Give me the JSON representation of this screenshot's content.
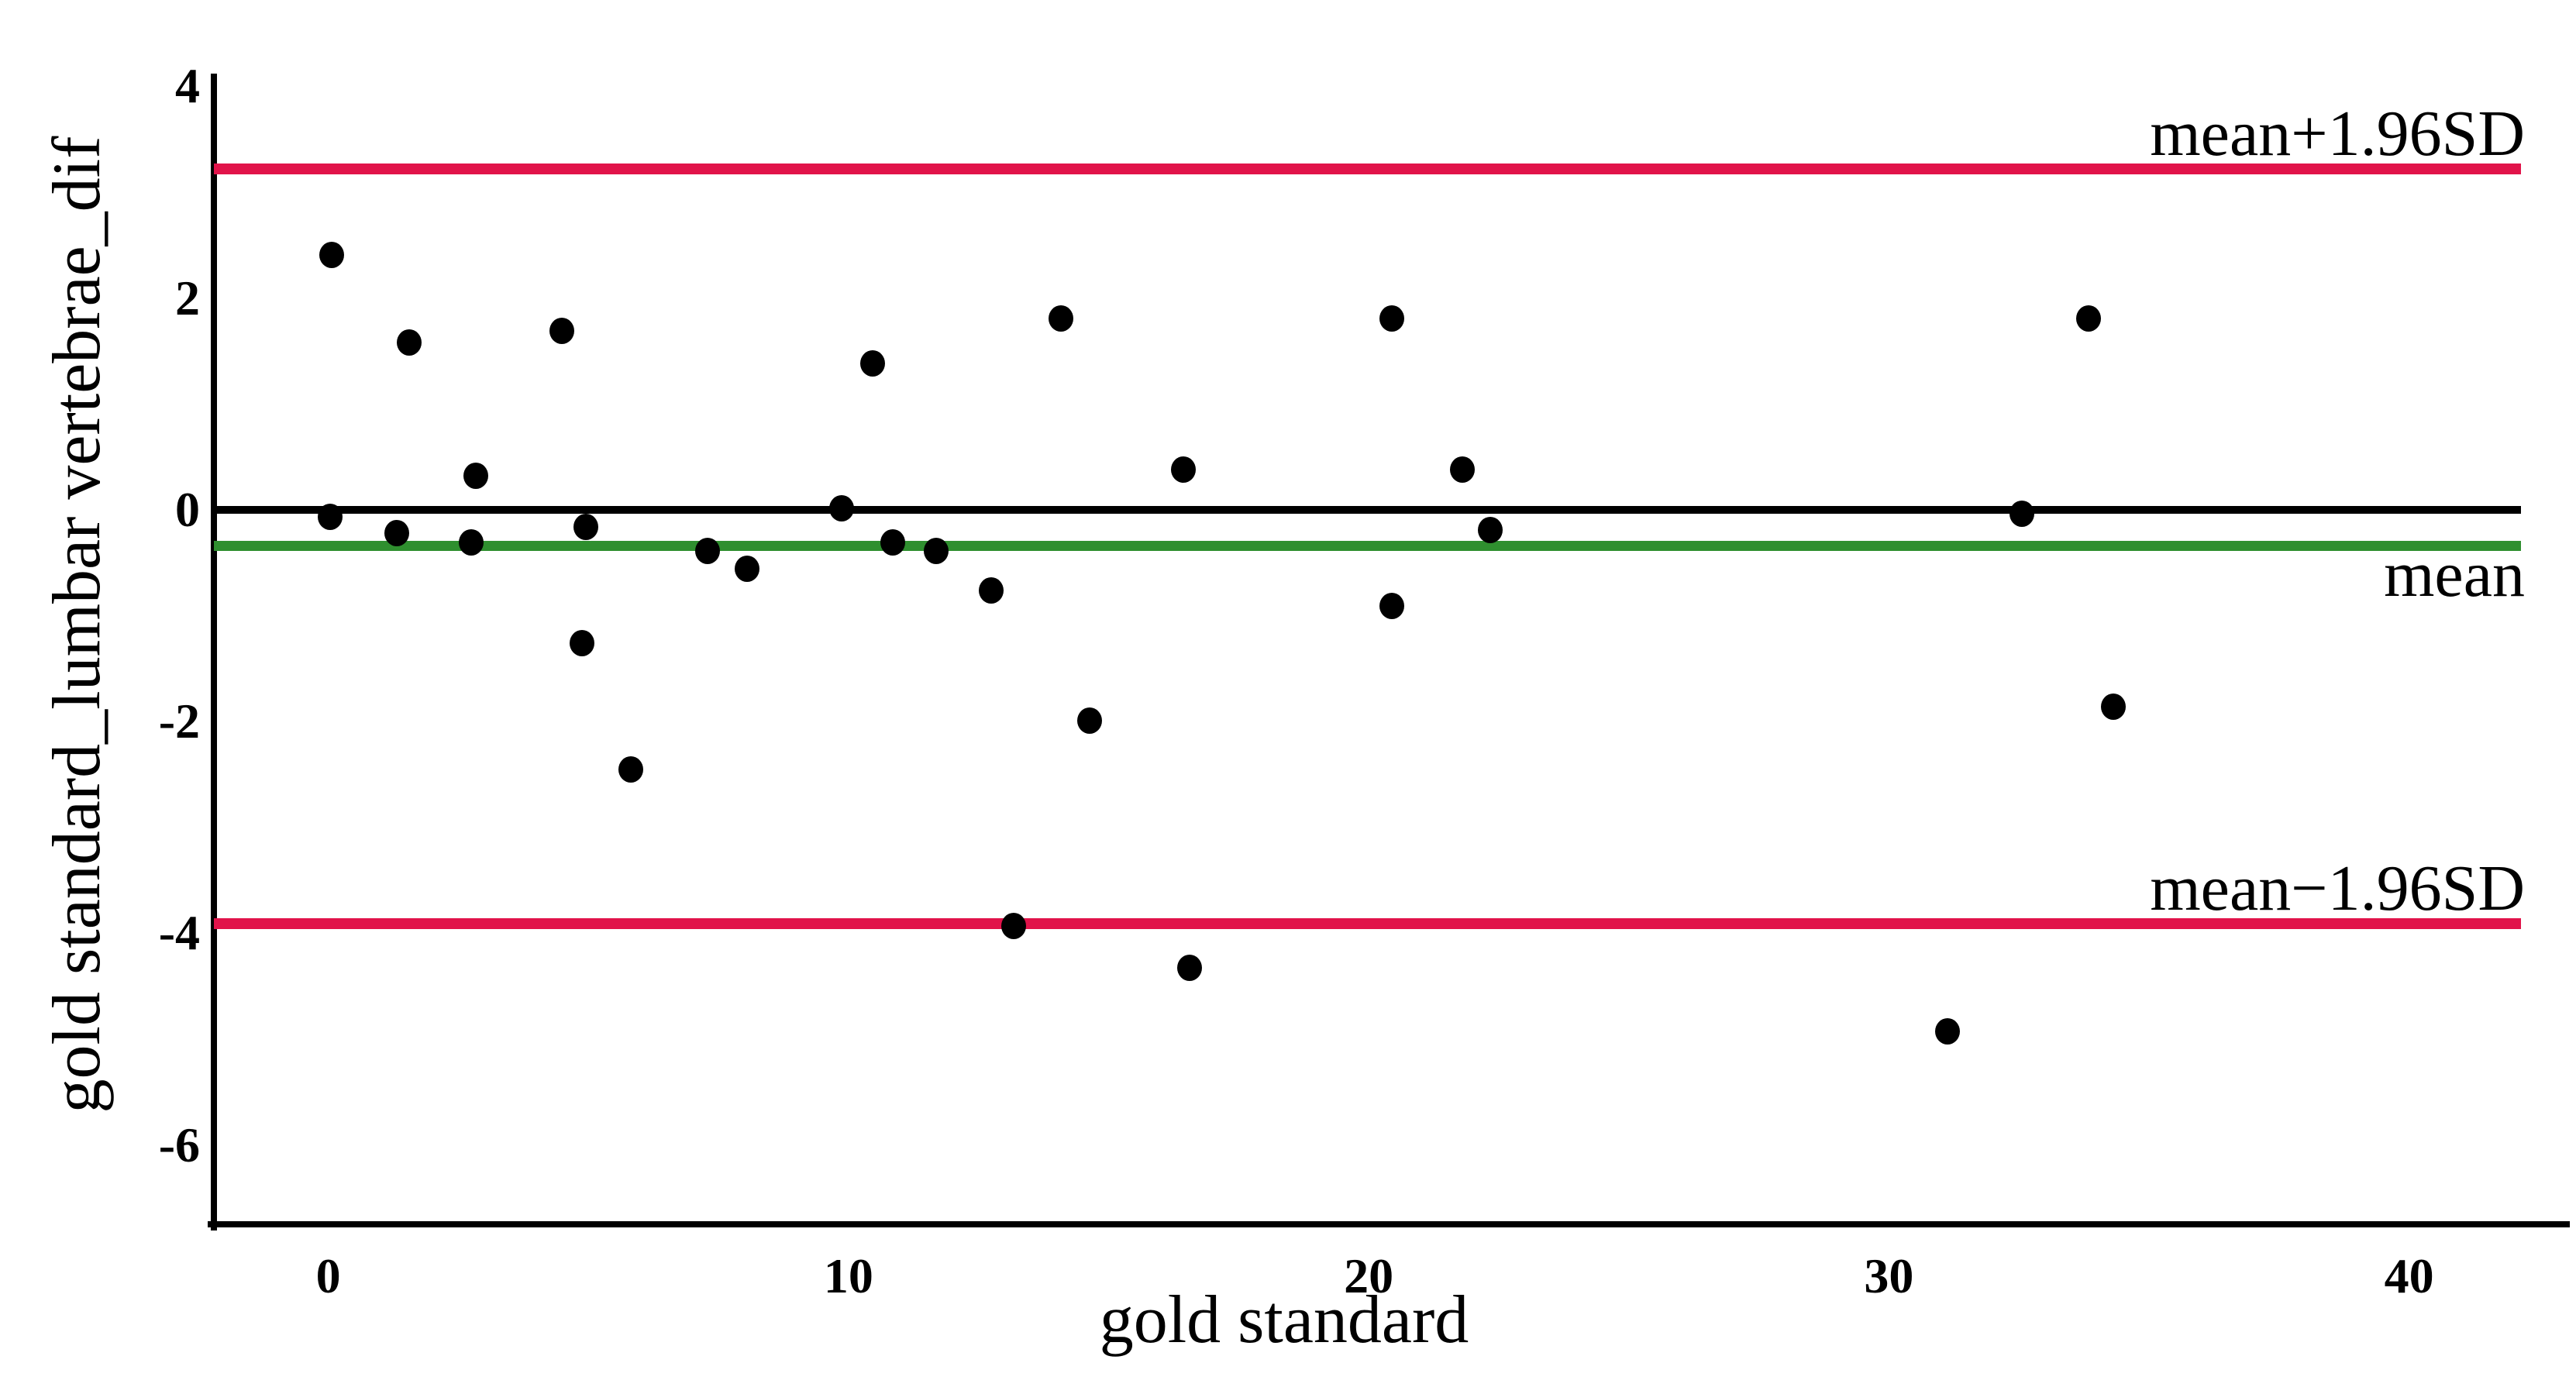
{
  "chart_data": {
    "type": "scatter",
    "title": "",
    "xlabel": "gold standard",
    "ylabel": "gold standard_lumbar vertebrae_dif",
    "xlim": [
      -2.2,
      42.15
    ],
    "ylim": [
      -6.75,
      4.12
    ],
    "grid": false,
    "legend_position": "none",
    "background": "#ffffff",
    "axis_color": "#000000",
    "point_color": "#000000",
    "x_ticks": [
      {
        "value": 0,
        "label": "0"
      },
      {
        "value": 10,
        "label": "10"
      },
      {
        "value": 20,
        "label": "20"
      },
      {
        "value": 30,
        "label": "30"
      },
      {
        "value": 40,
        "label": "40"
      }
    ],
    "y_ticks": [
      {
        "value": 4,
        "label": "4"
      },
      {
        "value": 2,
        "label": "2"
      },
      {
        "value": 0,
        "label": "0"
      },
      {
        "value": -2,
        "label": "-2"
      },
      {
        "value": -4,
        "label": "-4"
      },
      {
        "value": -6,
        "label": "-6"
      }
    ],
    "reference_lines": [
      {
        "id": "upper-loa-line",
        "value": 3.22,
        "color": "#e1134a",
        "thickness": 14,
        "label": "mean+1.96SD",
        "label_position": "above"
      },
      {
        "id": "zero-line",
        "value": 0,
        "color": "#000000",
        "thickness": 10,
        "label": "",
        "label_position": "none"
      },
      {
        "id": "mean-line",
        "value": -0.34,
        "color": "#2f8f2f",
        "thickness": 13,
        "label": "mean",
        "label_position": "below"
      },
      {
        "id": "lower-loa-line",
        "value": -3.91,
        "color": "#e1134a",
        "thickness": 14,
        "label": "mean−1.96SD",
        "label_position": "above"
      }
    ],
    "points": [
      [
        0.06,
        2.41
      ],
      [
        1.55,
        1.58
      ],
      [
        4.49,
        1.69
      ],
      [
        10.46,
        1.38
      ],
      [
        14.09,
        1.81
      ],
      [
        20.45,
        1.81
      ],
      [
        33.84,
        1.81
      ],
      [
        2.83,
        0.32
      ],
      [
        16.44,
        0.38
      ],
      [
        21.8,
        0.38
      ],
      [
        9.87,
        0.01
      ],
      [
        0.03,
        -0.07
      ],
      [
        32.55,
        -0.04
      ],
      [
        1.32,
        -0.22
      ],
      [
        2.75,
        -0.31
      ],
      [
        4.95,
        -0.16
      ],
      [
        7.29,
        -0.39
      ],
      [
        8.05,
        -0.56
      ],
      [
        10.85,
        -0.31
      ],
      [
        11.68,
        -0.39
      ],
      [
        12.74,
        -0.76
      ],
      [
        22.34,
        -0.19
      ],
      [
        20.45,
        -0.91
      ],
      [
        4.88,
        -1.26
      ],
      [
        5.82,
        -2.45
      ],
      [
        14.64,
        -1.99
      ],
      [
        13.18,
        -3.93
      ],
      [
        16.56,
        -4.33
      ],
      [
        34.32,
        -1.86
      ],
      [
        31.12,
        -4.93
      ]
    ]
  }
}
